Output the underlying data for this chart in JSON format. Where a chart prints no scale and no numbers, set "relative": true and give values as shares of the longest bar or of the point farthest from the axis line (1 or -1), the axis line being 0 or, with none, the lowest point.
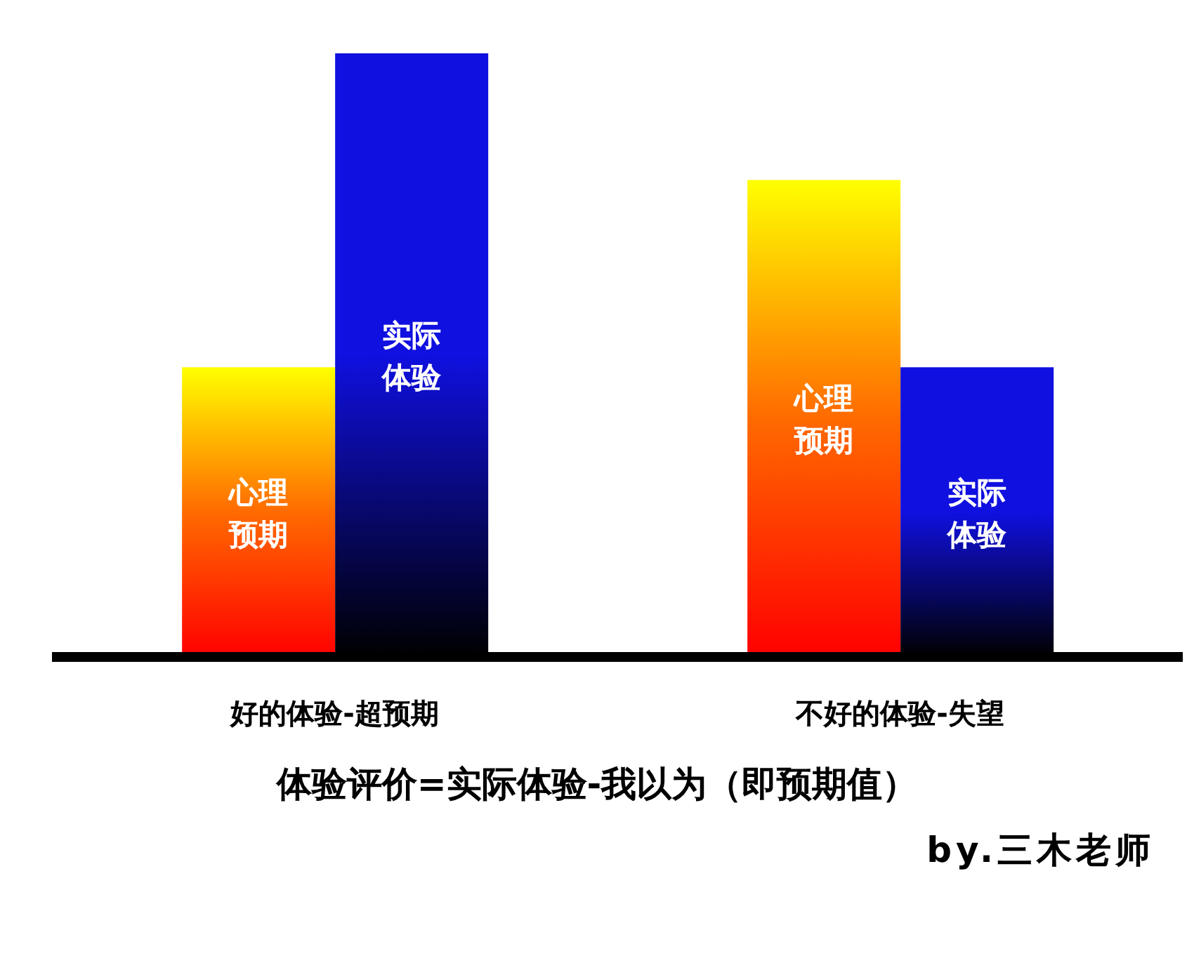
{
  "chart_data": {
    "type": "bar",
    "relative": true,
    "categories": [
      "好的体验-超预期",
      "不好的体验-失望"
    ],
    "series": [
      {
        "name": "心理预期",
        "color": "#ff6a00",
        "values": [
          0.48,
          0.79
        ]
      },
      {
        "name": "实际体验",
        "color": "#1010e0",
        "values": [
          1,
          0.48
        ]
      }
    ],
    "annotations": [
      "体验评价=实际体验-我以为（即预期值）",
      "by.三木老师"
    ]
  }
}
